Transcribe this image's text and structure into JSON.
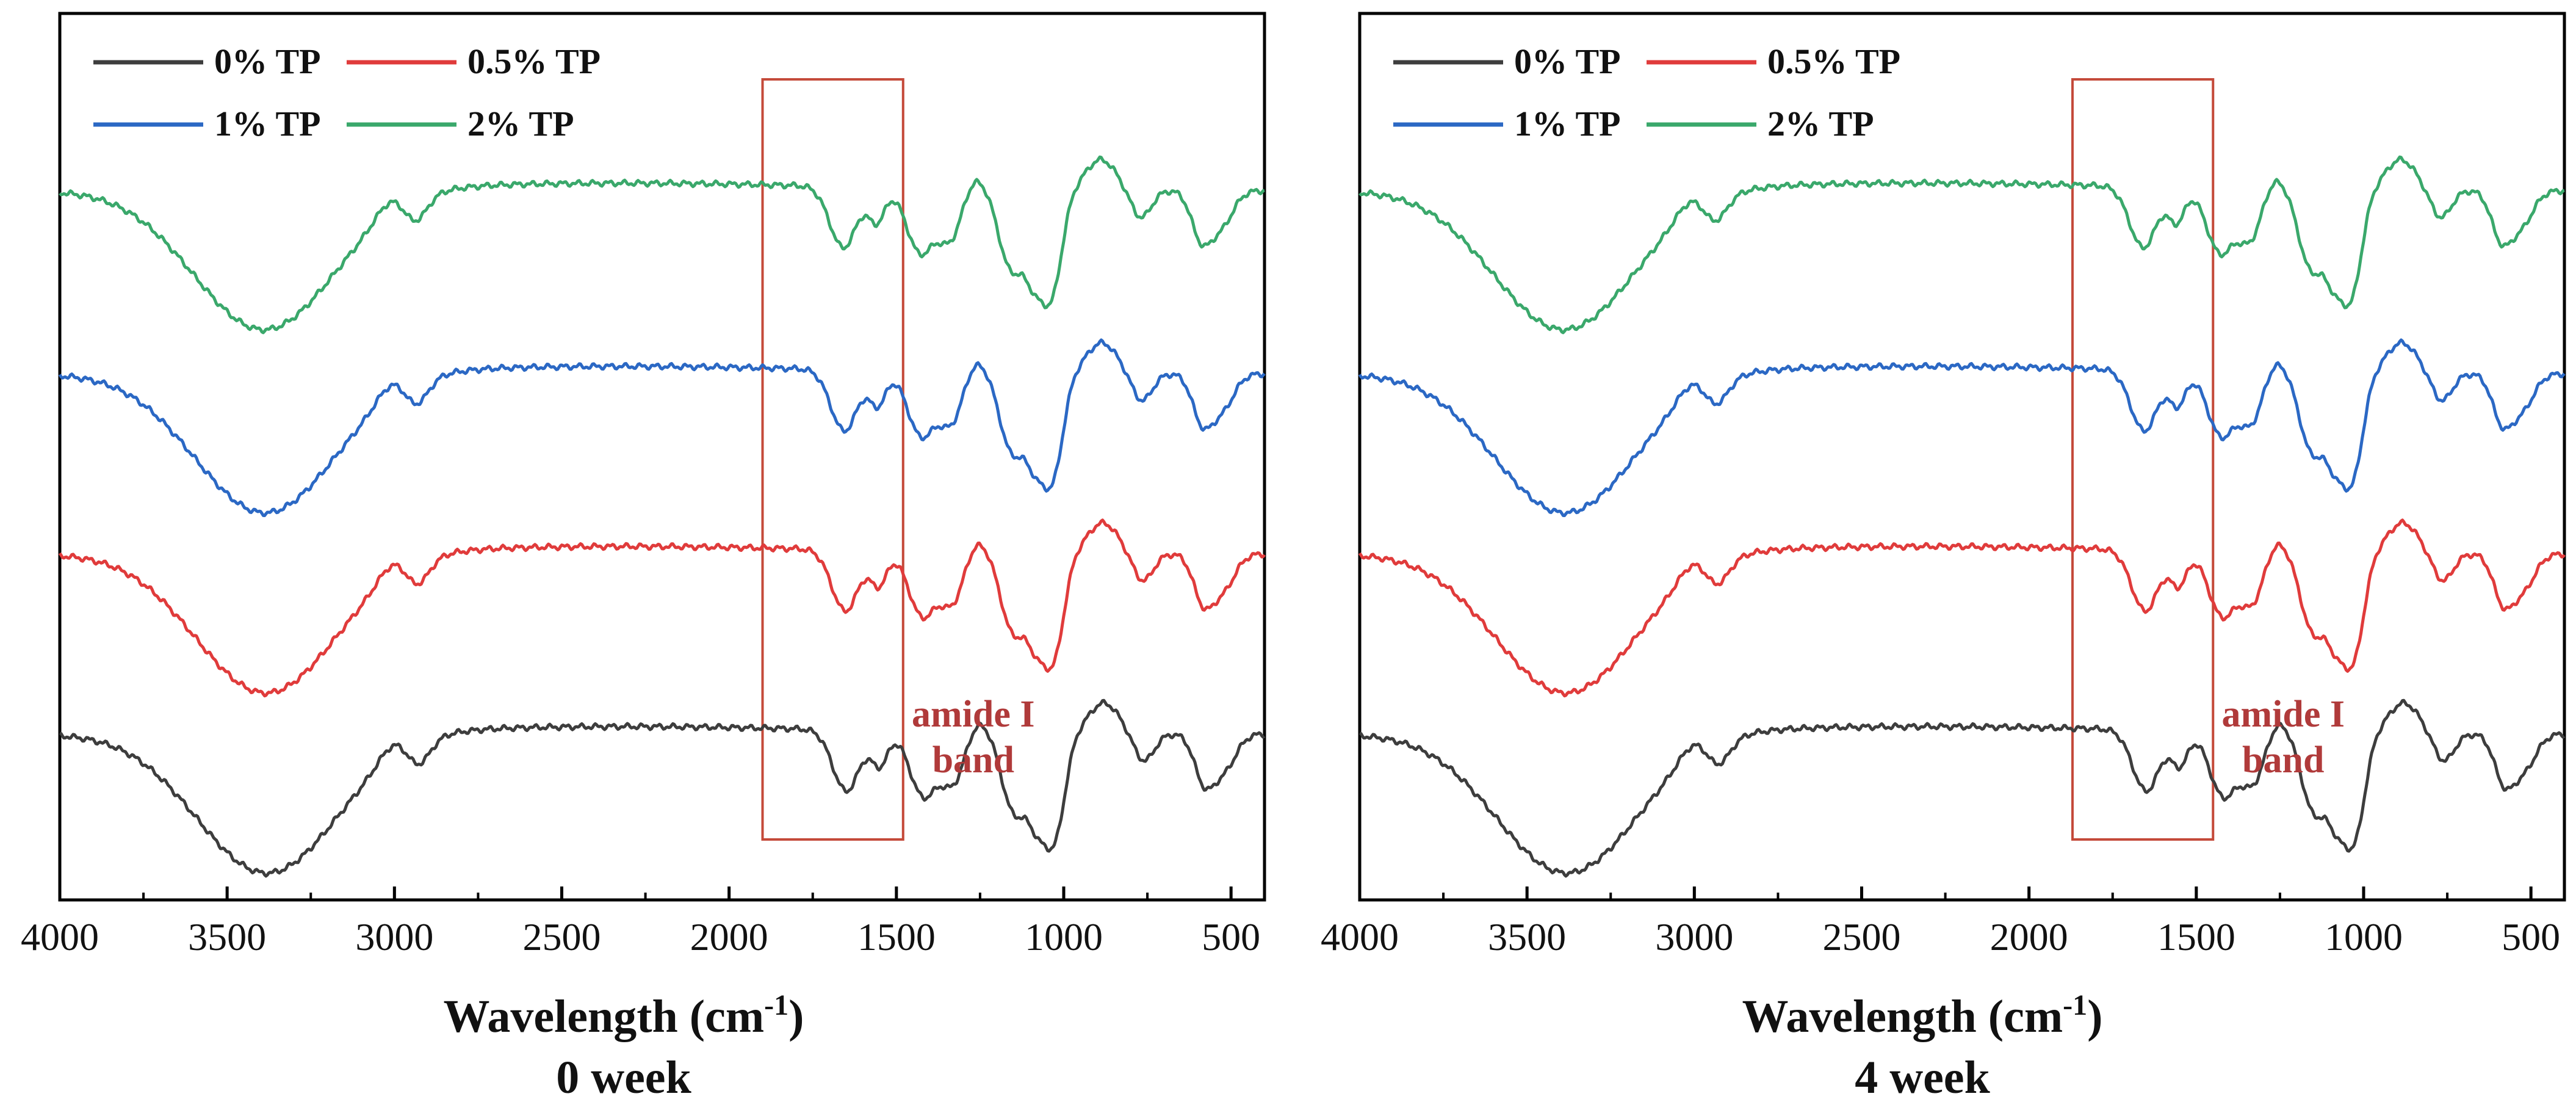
{
  "colors": {
    "0% TP": "#3d3d3d",
    "0.5% TP": "#e03b3b",
    "1% TP": "#2b68c4",
    "2% TP": "#3aa86b",
    "box": "#c44a3a",
    "annotation": "#b03a3a"
  },
  "chart_data": [
    {
      "type": "line",
      "title": "",
      "caption": "0 week",
      "xlabel": "Wavelength (cm-1)",
      "xlabel_main": "Wavelength (cm",
      "xlabel_sup": "-1",
      "xlabel_close": ")",
      "ylabel": "",
      "xlim": [
        4000,
        400
      ],
      "x_reversed": true,
      "ticks": [
        4000,
        3500,
        3000,
        2500,
        2000,
        1500,
        1000,
        500
      ],
      "tick_labels": [
        "4000",
        "3500",
        "3000",
        "2500",
        "2000",
        "1500",
        "1000",
        "500"
      ],
      "legend": [
        "0% TP",
        "0.5% TP",
        "1% TP",
        "2% TP"
      ],
      "legend_position": "top-left",
      "highlight_box": {
        "x_from": 1900,
        "x_to": 1480
      },
      "annotation": {
        "lines": [
          "amide I",
          "band"
        ]
      },
      "series": [
        {
          "name": "0% TP",
          "offset": 0.0
        },
        {
          "name": "0.5% TP",
          "offset": 1.0
        },
        {
          "name": "1% TP",
          "offset": 2.0
        },
        {
          "name": "2% TP",
          "offset": 3.0
        }
      ]
    },
    {
      "type": "line",
      "title": "",
      "caption": "4 week",
      "xlabel": "Wavelength (cm-1)",
      "xlabel_main": "Wavelength (cm",
      "xlabel_sup": "-1",
      "xlabel_close": ")",
      "ylabel": "",
      "xlim": [
        4000,
        400
      ],
      "x_reversed": true,
      "ticks": [
        4000,
        3500,
        3000,
        2500,
        2000,
        1500,
        1000,
        500
      ],
      "tick_labels": [
        "4000",
        "3500",
        "3000",
        "2500",
        "2000",
        "1500",
        "1000",
        "500"
      ],
      "legend": [
        "0% TP",
        "0.5% TP",
        "1% TP",
        "2% TP"
      ],
      "legend_position": "top-left",
      "highlight_box": {
        "x_from": 1870,
        "x_to": 1450
      },
      "annotation": {
        "lines": [
          "amide I",
          "band"
        ]
      },
      "series": [
        {
          "name": "0% TP",
          "offset": 0.0
        },
        {
          "name": "0.5% TP",
          "offset": 1.0
        },
        {
          "name": "1% TP",
          "offset": 2.0
        },
        {
          "name": "2% TP",
          "offset": 3.0
        }
      ]
    }
  ]
}
